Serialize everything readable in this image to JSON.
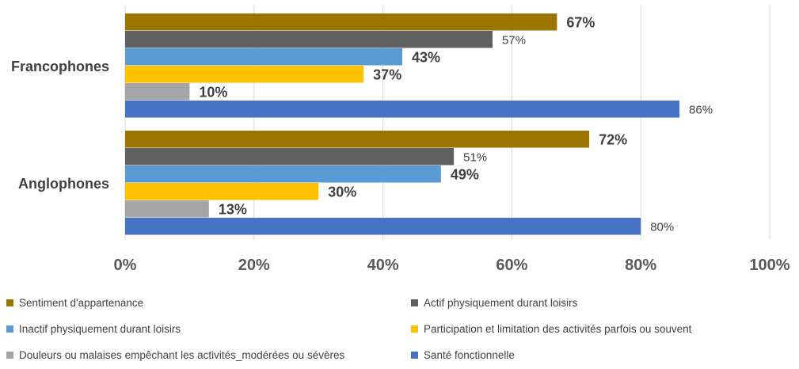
{
  "chart_data": {
    "type": "bar",
    "orientation": "horizontal",
    "categories": [
      "Francophones",
      "Anglophones"
    ],
    "xlim": [
      0,
      100
    ],
    "xticks": [
      "0%",
      "20%",
      "40%",
      "60%",
      "80%",
      "100%"
    ],
    "grid": true,
    "legend_position": "bottom",
    "series": [
      {
        "name": "Sentiment d'appartenance",
        "color": "#9C7400",
        "values": [
          67,
          72
        ],
        "labels": [
          "67%",
          "72%"
        ],
        "bold": true
      },
      {
        "name": "Actif physiquement durant loisirs",
        "color": "#606060",
        "values": [
          57,
          51
        ],
        "labels": [
          "57%",
          "51%"
        ],
        "bold": false
      },
      {
        "name": "Inactif physiquement durant loisirs",
        "color": "#5B9BD5",
        "values": [
          43,
          49
        ],
        "labels": [
          "43%",
          "49%"
        ],
        "bold": true
      },
      {
        "name": "Participation et limitation des activités parfois ou souvent",
        "color": "#FFC000",
        "values": [
          37,
          30
        ],
        "labels": [
          "37%",
          "30%"
        ],
        "bold": true
      },
      {
        "name": "Douleurs ou malaises empêchant les activités_modérées ou sévères",
        "color": "#A5A5A5",
        "values": [
          10,
          13
        ],
        "labels": [
          "10%",
          "13%"
        ],
        "bold": true
      },
      {
        "name": "Santé fonctionnelle",
        "color": "#4472C4",
        "values": [
          86,
          80
        ],
        "labels": [
          "86%",
          "80%"
        ],
        "bold": false
      }
    ]
  }
}
